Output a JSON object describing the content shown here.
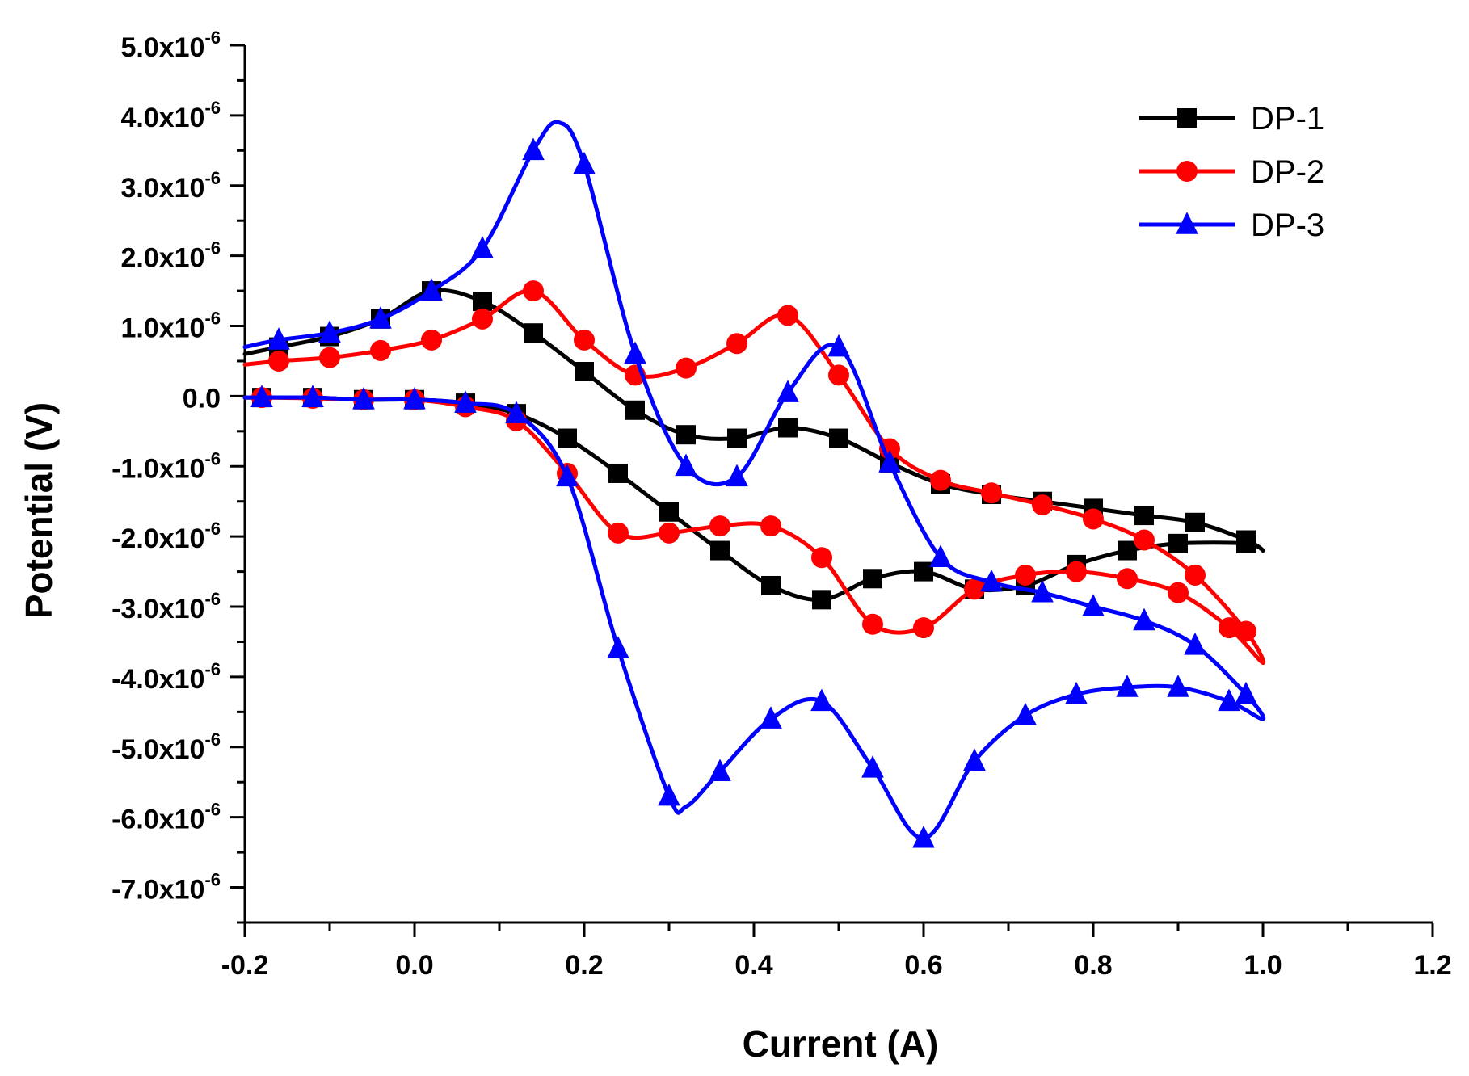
{
  "chart_data": {
    "type": "line",
    "title": "",
    "xlabel": "Current (A)",
    "ylabel": "Potential (V)",
    "xlim": [
      -0.2,
      1.2
    ],
    "ylim": [
      -7.5e-06,
      5e-06
    ],
    "xticks": [
      {
        "value": -0.2,
        "label": "-0.2"
      },
      {
        "value": 0.0,
        "label": "0.0"
      },
      {
        "value": 0.2,
        "label": "0.2"
      },
      {
        "value": 0.4,
        "label": "0.4"
      },
      {
        "value": 0.6,
        "label": "0.6"
      },
      {
        "value": 0.8,
        "label": "0.8"
      },
      {
        "value": 1.0,
        "label": "1.0"
      },
      {
        "value": 1.2,
        "label": "1.2"
      }
    ],
    "yticks": [
      {
        "value": 5e-06,
        "mantissa": "5.0x10",
        "exponent": "-6"
      },
      {
        "value": 4e-06,
        "mantissa": "4.0x10",
        "exponent": "-6"
      },
      {
        "value": 3e-06,
        "mantissa": "3.0x10",
        "exponent": "-6"
      },
      {
        "value": 2e-06,
        "mantissa": "2.0x10",
        "exponent": "-6"
      },
      {
        "value": 1e-06,
        "mantissa": "1.0x10",
        "exponent": "-6"
      },
      {
        "value": 0.0,
        "mantissa": "0.0",
        "exponent": ""
      },
      {
        "value": -1e-06,
        "mantissa": "-1.0x10",
        "exponent": "-6"
      },
      {
        "value": -2e-06,
        "mantissa": "-2.0x10",
        "exponent": "-6"
      },
      {
        "value": -3e-06,
        "mantissa": "-3.0x10",
        "exponent": "-6"
      },
      {
        "value": -4e-06,
        "mantissa": "-4.0x10",
        "exponent": "-6"
      },
      {
        "value": -5e-06,
        "mantissa": "-5.0x10",
        "exponent": "-6"
      },
      {
        "value": -6e-06,
        "mantissa": "-6.0x10",
        "exponent": "-6"
      },
      {
        "value": -7e-06,
        "mantissa": "-7.0x10",
        "exponent": "-6"
      }
    ],
    "legend_position": "top-right",
    "series": [
      {
        "name": "DP-1",
        "color": "#000000",
        "marker": "square",
        "points": [
          [
            -0.2,
            6e-07
          ],
          [
            -0.16,
            7e-07
          ],
          [
            -0.1,
            8.5e-07
          ],
          [
            -0.04,
            1.1e-06
          ],
          [
            0.02,
            1.5e-06
          ],
          [
            0.08,
            1.35e-06
          ],
          [
            0.14,
            9e-07
          ],
          [
            0.2,
            3.5e-07
          ],
          [
            0.26,
            -2e-07
          ],
          [
            0.32,
            -5.5e-07
          ],
          [
            0.38,
            -6e-07
          ],
          [
            0.44,
            -4.5e-07
          ],
          [
            0.5,
            -6e-07
          ],
          [
            0.56,
            -9.5e-07
          ],
          [
            0.62,
            -1.25e-06
          ],
          [
            0.68,
            -1.4e-06
          ],
          [
            0.74,
            -1.5e-06
          ],
          [
            0.8,
            -1.6e-06
          ],
          [
            0.86,
            -1.7e-06
          ],
          [
            0.92,
            -1.8e-06
          ],
          [
            0.98,
            -2.05e-06
          ],
          [
            1.0,
            -2.2e-06
          ],
          [
            0.98,
            -2.1e-06
          ],
          [
            0.9,
            -2.1e-06
          ],
          [
            0.84,
            -2.2e-06
          ],
          [
            0.78,
            -2.4e-06
          ],
          [
            0.72,
            -2.7e-06
          ],
          [
            0.66,
            -2.75e-06
          ],
          [
            0.6,
            -2.5e-06
          ],
          [
            0.54,
            -2.6e-06
          ],
          [
            0.48,
            -2.9e-06
          ],
          [
            0.42,
            -2.7e-06
          ],
          [
            0.36,
            -2.2e-06
          ],
          [
            0.3,
            -1.65e-06
          ],
          [
            0.24,
            -1.1e-06
          ],
          [
            0.18,
            -6e-07
          ],
          [
            0.12,
            -2.5e-07
          ],
          [
            0.06,
            -1e-07
          ],
          [
            0.0,
            -5e-08
          ],
          [
            -0.06,
            -5e-08
          ],
          [
            -0.12,
            -2e-08
          ],
          [
            -0.18,
            -2e-08
          ],
          [
            -0.2,
            -2e-08
          ]
        ],
        "marker_indices": [
          1,
          2,
          3,
          4,
          5,
          6,
          7,
          8,
          9,
          10,
          11,
          12,
          13,
          14,
          15,
          16,
          17,
          18,
          19,
          20,
          22,
          23,
          24,
          25,
          26,
          27,
          28,
          29,
          30,
          31,
          32,
          33,
          34,
          35,
          36,
          37,
          38,
          39,
          40,
          41
        ]
      },
      {
        "name": "DP-2",
        "color": "#ff0000",
        "marker": "circle",
        "points": [
          [
            -0.2,
            4.5e-07
          ],
          [
            -0.16,
            5e-07
          ],
          [
            -0.1,
            5.5e-07
          ],
          [
            -0.04,
            6.5e-07
          ],
          [
            0.02,
            8e-07
          ],
          [
            0.08,
            1.1e-06
          ],
          [
            0.14,
            1.5e-06
          ],
          [
            0.2,
            8e-07
          ],
          [
            0.26,
            3e-07
          ],
          [
            0.32,
            4e-07
          ],
          [
            0.38,
            7.5e-07
          ],
          [
            0.44,
            1.15e-06
          ],
          [
            0.5,
            3e-07
          ],
          [
            0.56,
            -7.5e-07
          ],
          [
            0.62,
            -1.2e-06
          ],
          [
            0.68,
            -1.38e-06
          ],
          [
            0.74,
            -1.55e-06
          ],
          [
            0.8,
            -1.75e-06
          ],
          [
            0.86,
            -2.05e-06
          ],
          [
            0.92,
            -2.55e-06
          ],
          [
            0.98,
            -3.35e-06
          ],
          [
            1.0,
            -3.8e-06
          ],
          [
            0.96,
            -3.3e-06
          ],
          [
            0.9,
            -2.8e-06
          ],
          [
            0.84,
            -2.6e-06
          ],
          [
            0.78,
            -2.5e-06
          ],
          [
            0.72,
            -2.55e-06
          ],
          [
            0.66,
            -2.75e-06
          ],
          [
            0.6,
            -3.3e-06
          ],
          [
            0.54,
            -3.25e-06
          ],
          [
            0.48,
            -2.3e-06
          ],
          [
            0.42,
            -1.85e-06
          ],
          [
            0.36,
            -1.85e-06
          ],
          [
            0.3,
            -1.95e-06
          ],
          [
            0.24,
            -1.95e-06
          ],
          [
            0.18,
            -1.1e-06
          ],
          [
            0.12,
            -3.5e-07
          ],
          [
            0.06,
            -1.5e-07
          ],
          [
            0.0,
            -5e-08
          ],
          [
            -0.06,
            -5e-08
          ],
          [
            -0.12,
            -3e-08
          ],
          [
            -0.18,
            -2e-08
          ],
          [
            -0.2,
            -2e-08
          ]
        ],
        "marker_indices": [
          1,
          2,
          3,
          4,
          5,
          6,
          7,
          8,
          9,
          10,
          11,
          12,
          13,
          14,
          15,
          16,
          17,
          18,
          19,
          20,
          22,
          23,
          24,
          25,
          26,
          27,
          28,
          29,
          30,
          31,
          32,
          33,
          34,
          35,
          36,
          37,
          38,
          39,
          40,
          41
        ]
      },
      {
        "name": "DP-3",
        "color": "#0000ff",
        "marker": "triangle",
        "points": [
          [
            -0.2,
            7e-07
          ],
          [
            -0.16,
            8e-07
          ],
          [
            -0.1,
            9e-07
          ],
          [
            -0.04,
            1.1e-06
          ],
          [
            0.02,
            1.5e-06
          ],
          [
            0.08,
            2.1e-06
          ],
          [
            0.14,
            3.5e-06
          ],
          [
            0.17,
            3.9e-06
          ],
          [
            0.2,
            3.3e-06
          ],
          [
            0.26,
            6e-07
          ],
          [
            0.32,
            -1e-06
          ],
          [
            0.38,
            -1.15e-06
          ],
          [
            0.44,
            5e-08
          ],
          [
            0.5,
            7e-07
          ],
          [
            0.56,
            -9.5e-07
          ],
          [
            0.62,
            -2.3e-06
          ],
          [
            0.68,
            -2.65e-06
          ],
          [
            0.74,
            -2.8e-06
          ],
          [
            0.8,
            -3e-06
          ],
          [
            0.86,
            -3.2e-06
          ],
          [
            0.92,
            -3.55e-06
          ],
          [
            0.98,
            -4.25e-06
          ],
          [
            1.0,
            -4.6e-06
          ],
          [
            0.96,
            -4.35e-06
          ],
          [
            0.9,
            -4.15e-06
          ],
          [
            0.84,
            -4.15e-06
          ],
          [
            0.78,
            -4.25e-06
          ],
          [
            0.72,
            -4.55e-06
          ],
          [
            0.66,
            -5.2e-06
          ],
          [
            0.6,
            -6.3e-06
          ],
          [
            0.54,
            -5.3e-06
          ],
          [
            0.48,
            -4.35e-06
          ],
          [
            0.42,
            -4.6e-06
          ],
          [
            0.36,
            -5.35e-06
          ],
          [
            0.32,
            -5.85e-06
          ],
          [
            0.3,
            -5.7e-06
          ],
          [
            0.24,
            -3.6e-06
          ],
          [
            0.18,
            -1.15e-06
          ],
          [
            0.12,
            -2.5e-07
          ],
          [
            0.06,
            -1e-07
          ],
          [
            0.0,
            -5e-08
          ],
          [
            -0.06,
            -5e-08
          ],
          [
            -0.12,
            -2e-08
          ],
          [
            -0.18,
            -2e-08
          ],
          [
            -0.2,
            -2e-08
          ]
        ],
        "marker_indices": [
          1,
          2,
          3,
          4,
          5,
          6,
          8,
          9,
          10,
          11,
          12,
          13,
          14,
          15,
          16,
          17,
          18,
          19,
          20,
          21,
          23,
          24,
          25,
          26,
          27,
          28,
          29,
          30,
          31,
          32,
          33,
          35,
          36,
          37,
          38,
          39,
          40,
          41,
          42,
          43
        ]
      }
    ]
  }
}
